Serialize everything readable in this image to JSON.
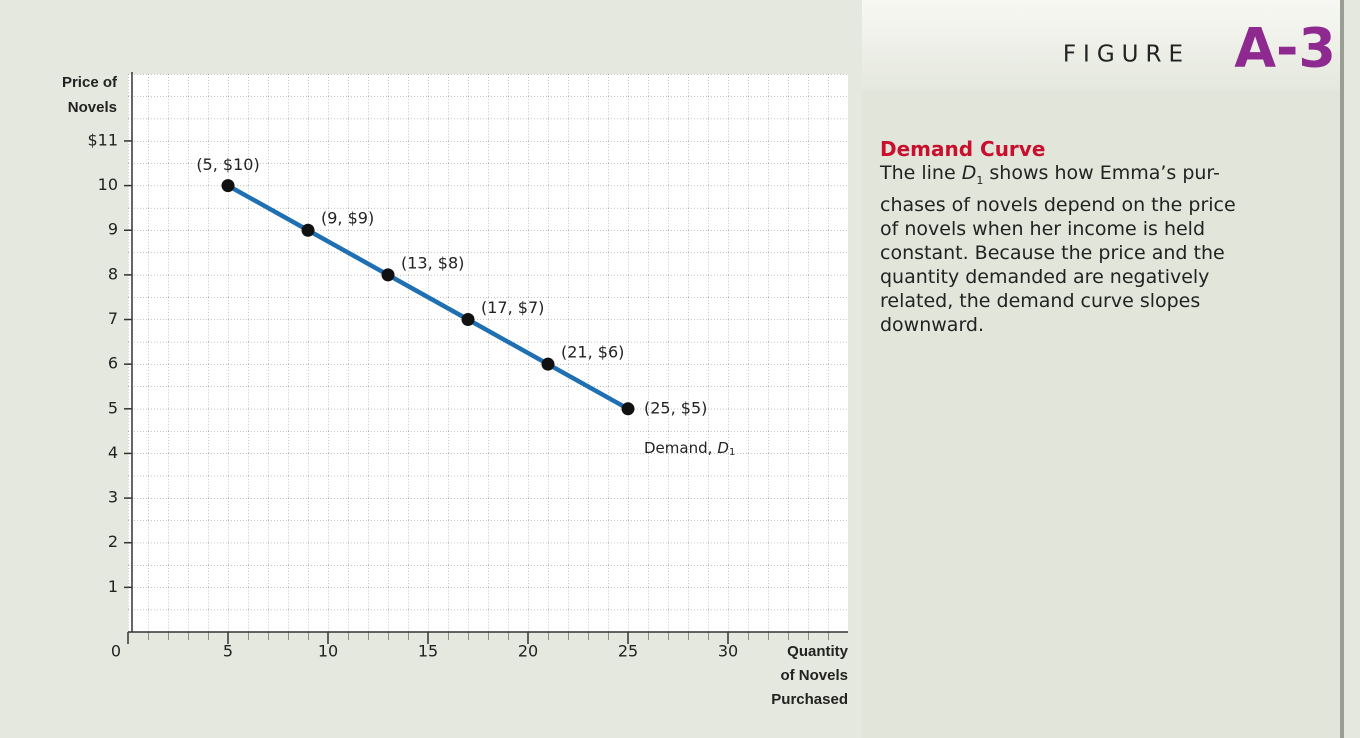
{
  "chart_data": {
    "type": "line",
    "figure_word": "FIGURE",
    "figure_number": "A-3",
    "y_label": [
      "Price of",
      "Novels"
    ],
    "x_label": [
      "Quantity",
      "of Novels",
      "Purchased"
    ],
    "xlim": [
      0,
      36
    ],
    "ylim": [
      0,
      12.5
    ],
    "xticks": [
      0,
      5,
      10,
      15,
      20,
      25,
      30
    ],
    "yticks": [
      1,
      2,
      3,
      4,
      5,
      6,
      7,
      8,
      9,
      10,
      {
        "value": 11,
        "label": "$11"
      }
    ],
    "grid": true,
    "series": [
      {
        "name": "Demand,",
        "name_symbol": "D",
        "name_subscript": "1",
        "color": "#1f6fb3",
        "x": [
          5,
          9,
          13,
          17,
          21,
          25
        ],
        "values": [
          10,
          9,
          8,
          7,
          6,
          5
        ],
        "value_labels": [
          "(5, $10)",
          "(9, $9)",
          "(13, $8)",
          "(17, $7)",
          "(21, $6)",
          "(25, $5)"
        ]
      }
    ],
    "caption": {
      "title": "Demand Curve",
      "first_line": [
        "The line ",
        "D",
        "1",
        " shows how Emma’s pur-"
      ],
      "lines": [
        "chases of novels depend on the price",
        "of novels when her income is held",
        "constant. Because the price and the",
        "quantity demanded are negatively",
        "related, the demand curve slopes",
        "downward."
      ]
    }
  }
}
